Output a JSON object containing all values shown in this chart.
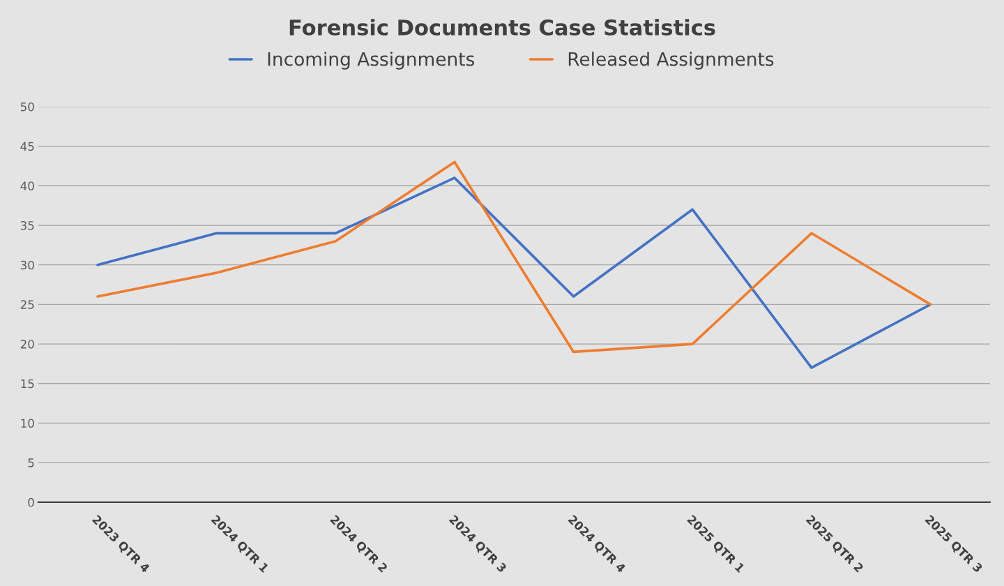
{
  "chart_data": {
    "type": "line",
    "title": "Forensic Documents Case Statistics",
    "categories": [
      "2023 QTR 4",
      "2024 QTR 1",
      "2024 QTR 2",
      "2024 QTR 3",
      "2024 QTR 4",
      "2025 QTR 1",
      "2025 QTR 2",
      "2025 QTR 3"
    ],
    "series": [
      {
        "name": "Incoming Assignments",
        "color": "#4472c4",
        "values": [
          30,
          34,
          34,
          41,
          26,
          37,
          17,
          25
        ]
      },
      {
        "name": "Released Assignments",
        "color": "#ed7d31",
        "values": [
          26,
          29,
          33,
          43,
          19,
          20,
          34,
          25
        ]
      }
    ],
    "ylim": [
      0,
      50
    ],
    "yticks": [
      0,
      5,
      10,
      15,
      20,
      25,
      30,
      35,
      40,
      45,
      50
    ],
    "grid": "y",
    "legend": "top",
    "marker": "none",
    "line_style": "solid"
  }
}
